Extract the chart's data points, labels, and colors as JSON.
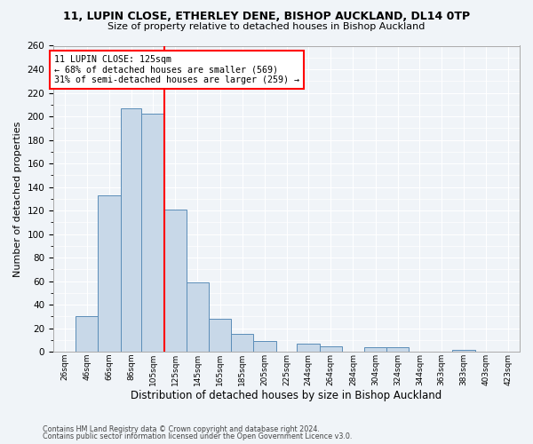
{
  "title1": "11, LUPIN CLOSE, ETHERLEY DENE, BISHOP AUCKLAND, DL14 0TP",
  "title2": "Size of property relative to detached houses in Bishop Auckland",
  "xlabel": "Distribution of detached houses by size in Bishop Auckland",
  "ylabel": "Number of detached properties",
  "bar_color": "#c8d8e8",
  "bar_edge_color": "#5b8db8",
  "bg_color": "#f0f4f8",
  "grid_color": "#ffffff",
  "vline_x": 125,
  "vline_color": "red",
  "annotation_title": "11 LUPIN CLOSE: 125sqm",
  "annotation_line2": "← 68% of detached houses are smaller (569)",
  "annotation_line3": "31% of semi-detached houses are larger (259) →",
  "annotation_box_color": "red",
  "bins_left_edges": [
    26,
    46,
    66,
    86,
    105,
    125,
    145,
    165,
    185,
    205,
    225,
    244,
    264,
    284,
    304,
    324,
    344,
    363,
    383,
    403,
    423
  ],
  "bin_labels": [
    "26sqm",
    "46sqm",
    "66sqm",
    "86sqm",
    "105sqm",
    "125sqm",
    "145sqm",
    "165sqm",
    "185sqm",
    "205sqm",
    "225sqm",
    "244sqm",
    "264sqm",
    "284sqm",
    "304sqm",
    "324sqm",
    "344sqm",
    "363sqm",
    "383sqm",
    "403sqm",
    "423sqm"
  ],
  "bar_heights": [
    0,
    30,
    133,
    207,
    202,
    121,
    59,
    28,
    15,
    9,
    0,
    7,
    5,
    0,
    4,
    4,
    0,
    0,
    2,
    0,
    0
  ],
  "ylim": [
    0,
    260
  ],
  "yticks": [
    0,
    20,
    40,
    60,
    80,
    100,
    120,
    140,
    160,
    180,
    200,
    220,
    240,
    260
  ],
  "footnote1": "Contains HM Land Registry data © Crown copyright and database right 2024.",
  "footnote2": "Contains public sector information licensed under the Open Government Licence v3.0."
}
